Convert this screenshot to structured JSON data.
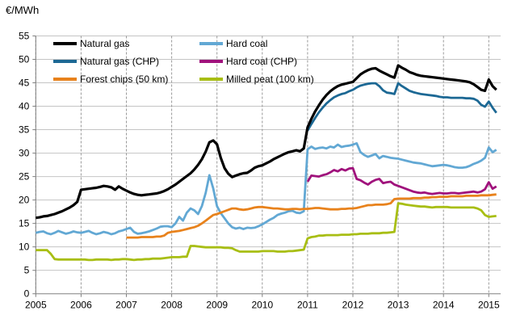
{
  "chart": {
    "y_axis_title": "€/MWh",
    "y_ticks": [
      "0",
      "5",
      "10",
      "15",
      "20",
      "25",
      "30",
      "35",
      "40",
      "45",
      "50",
      "55"
    ],
    "x_ticks": [
      "2005",
      "2006",
      "2007",
      "2008",
      "2009",
      "2010",
      "2011",
      "2012",
      "2013",
      "2014",
      "2015"
    ]
  },
  "chart_data": {
    "type": "line",
    "title": "€/MWh",
    "ylabel": "€/MWh",
    "ylim": [
      0,
      55
    ],
    "y_tick_step": 5,
    "x_range": [
      "2005-01",
      "2015-03"
    ],
    "x_unit": "monthly",
    "grid": "horizontal solid light gray, vertical dashed gray per year",
    "legend_position": "inside top-left, two columns",
    "series": [
      {
        "name": "Hard coal",
        "color": "#62a8d4",
        "start": "2005-01",
        "values": [
          13.0,
          13.2,
          13.3,
          12.9,
          12.7,
          13.0,
          13.4,
          13.1,
          12.8,
          13.0,
          13.3,
          13.1,
          13.0,
          13.2,
          13.4,
          13.0,
          12.7,
          12.9,
          13.2,
          13.0,
          12.7,
          12.9,
          13.3,
          13.5,
          13.8,
          14.1,
          13.2,
          12.8,
          12.9,
          13.1,
          13.3,
          13.6,
          13.9,
          14.3,
          14.4,
          14.4,
          14.2,
          15.0,
          16.4,
          15.6,
          17.3,
          18.2,
          17.8,
          17.0,
          18.7,
          21.5,
          25.3,
          22.5,
          18.7,
          17.2,
          16.1,
          15.0,
          14.2,
          13.9,
          14.1,
          13.8,
          14.1,
          14.0,
          14.1,
          14.4,
          14.8,
          15.3,
          15.8,
          16.2,
          16.8,
          17.1,
          17.3,
          17.6,
          17.7,
          17.3,
          17.2,
          17.6,
          30.8,
          31.4,
          30.9,
          31.1,
          31.2,
          31.0,
          31.4,
          31.2,
          31.8,
          31.3,
          31.5,
          31.6,
          31.8,
          32.1,
          30.2,
          29.6,
          29.2,
          29.5,
          29.8,
          28.9,
          29.4,
          29.2,
          29.0,
          28.9,
          28.8,
          28.6,
          28.4,
          28.2,
          28.0,
          27.9,
          27.8,
          27.6,
          27.4,
          27.2,
          27.3,
          27.4,
          27.5,
          27.4,
          27.2,
          27.0,
          26.9,
          26.9,
          27.0,
          27.3,
          27.7,
          28.0,
          28.4,
          29.0,
          31.2,
          30.2,
          30.7
        ]
      },
      {
        "name": "Milled peat (100 km)",
        "color": "#a8be14",
        "start": "2005-01",
        "values": [
          9.3,
          9.3,
          9.3,
          9.3,
          8.5,
          7.4,
          7.3,
          7.3,
          7.3,
          7.3,
          7.3,
          7.3,
          7.3,
          7.3,
          7.2,
          7.2,
          7.3,
          7.3,
          7.3,
          7.3,
          7.2,
          7.3,
          7.3,
          7.4,
          7.4,
          7.3,
          7.2,
          7.3,
          7.3,
          7.4,
          7.4,
          7.5,
          7.5,
          7.5,
          7.6,
          7.7,
          7.8,
          7.8,
          7.8,
          7.9,
          7.9,
          10.2,
          10.2,
          10.1,
          10.0,
          9.9,
          9.9,
          9.9,
          9.9,
          9.9,
          9.8,
          9.8,
          9.7,
          9.3,
          9.0,
          9.0,
          9.0,
          9.0,
          9.0,
          9.0,
          9.1,
          9.1,
          9.1,
          9.1,
          9.0,
          9.0,
          9.0,
          9.1,
          9.1,
          9.2,
          9.3,
          9.4,
          11.8,
          12.1,
          12.2,
          12.4,
          12.4,
          12.5,
          12.5,
          12.5,
          12.5,
          12.6,
          12.6,
          12.6,
          12.7,
          12.7,
          12.8,
          12.8,
          12.8,
          12.9,
          12.9,
          12.9,
          13.0,
          13.0,
          13.1,
          13.2,
          19.3,
          19.2,
          19.0,
          18.9,
          18.8,
          18.7,
          18.6,
          18.6,
          18.5,
          18.4,
          18.5,
          18.5,
          18.5,
          18.5,
          18.4,
          18.4,
          18.4,
          18.4,
          18.4,
          18.4,
          18.4,
          18.2,
          17.8,
          16.8,
          16.4,
          16.5,
          16.6
        ]
      },
      {
        "name": "Forest chips (50 km)",
        "color": "#e8821c",
        "start": "2007-01",
        "values": [
          12.0,
          12.0,
          12.0,
          12.0,
          12.1,
          12.1,
          12.1,
          12.1,
          12.2,
          12.2,
          12.4,
          13.0,
          13.2,
          13.3,
          13.4,
          13.6,
          13.8,
          14.0,
          14.2,
          14.5,
          15.0,
          15.6,
          16.2,
          16.8,
          17.0,
          17.3,
          17.6,
          17.9,
          18.2,
          18.2,
          18.0,
          17.9,
          18.0,
          18.2,
          18.4,
          18.5,
          18.5,
          18.4,
          18.3,
          18.2,
          18.2,
          18.1,
          18.0,
          18.0,
          18.1,
          18.1,
          18.0,
          18.1,
          18.1,
          18.2,
          18.3,
          18.3,
          18.2,
          18.1,
          18.0,
          18.0,
          18.0,
          18.1,
          18.1,
          18.2,
          18.2,
          18.3,
          18.5,
          18.7,
          18.9,
          18.9,
          19.0,
          19.0,
          19.0,
          19.1,
          19.3,
          20.2,
          20.3,
          20.3,
          20.3,
          20.3,
          20.4,
          20.4,
          20.4,
          20.5,
          20.5,
          20.6,
          20.6,
          20.7,
          20.7,
          20.7,
          20.8,
          20.8,
          20.8,
          20.8,
          20.9,
          20.9,
          20.9,
          20.9,
          21.0,
          21.0,
          21.0,
          21.1,
          21.2
        ]
      },
      {
        "name": "Hard coal (CHP)",
        "color": "#a0127c",
        "start": "2011-01",
        "values": [
          23.9,
          25.2,
          25.1,
          25.0,
          25.3,
          25.5,
          25.9,
          26.4,
          26.1,
          26.6,
          26.3,
          26.7,
          26.8,
          24.5,
          24.2,
          23.7,
          23.3,
          23.9,
          24.3,
          24.5,
          23.6,
          23.8,
          23.9,
          23.3,
          23.0,
          22.7,
          22.4,
          22.1,
          21.8,
          21.6,
          21.5,
          21.6,
          21.4,
          21.3,
          21.4,
          21.5,
          21.4,
          21.4,
          21.5,
          21.5,
          21.4,
          21.5,
          21.6,
          21.7,
          21.8,
          21.6,
          21.8,
          22.3,
          23.8,
          22.4,
          22.9
        ]
      },
      {
        "name": "Natural gas (CHP)",
        "color": "#1c6894",
        "start": "2011-01",
        "values": [
          34.8,
          36.2,
          37.5,
          38.7,
          39.7,
          40.6,
          41.3,
          41.9,
          42.3,
          42.6,
          42.8,
          43.2,
          43.5,
          44.0,
          44.4,
          44.6,
          44.8,
          44.9,
          44.9,
          44.3,
          43.4,
          42.9,
          42.8,
          42.6,
          44.9,
          44.3,
          43.8,
          43.3,
          43.0,
          42.8,
          42.6,
          42.5,
          42.4,
          42.3,
          42.2,
          42.0,
          41.9,
          41.9,
          41.8,
          41.8,
          41.8,
          41.8,
          41.7,
          41.7,
          41.6,
          41.2,
          40.3,
          39.9,
          41.0,
          39.7,
          38.6
        ]
      },
      {
        "name": "Natural gas",
        "color": "#000000",
        "start": "2005-01",
        "values": [
          16.2,
          16.3,
          16.5,
          16.6,
          16.8,
          17.0,
          17.3,
          17.6,
          18.0,
          18.4,
          18.9,
          19.6,
          22.2,
          22.3,
          22.4,
          22.5,
          22.6,
          22.8,
          23.0,
          22.9,
          22.7,
          22.2,
          22.9,
          22.4,
          22.0,
          21.6,
          21.3,
          21.1,
          21.0,
          21.1,
          21.2,
          21.3,
          21.4,
          21.6,
          21.9,
          22.3,
          22.8,
          23.3,
          23.9,
          24.5,
          25.1,
          25.7,
          26.5,
          27.5,
          28.7,
          30.3,
          32.3,
          32.7,
          31.9,
          29.0,
          26.8,
          25.6,
          24.9,
          25.2,
          25.5,
          25.7,
          25.8,
          26.3,
          26.9,
          27.2,
          27.4,
          27.8,
          28.2,
          28.7,
          29.1,
          29.5,
          29.9,
          30.2,
          30.4,
          30.6,
          30.4,
          31.0,
          35.5,
          37.3,
          38.9,
          40.2,
          41.4,
          42.4,
          43.2,
          43.8,
          44.3,
          44.6,
          44.8,
          45.0,
          45.2,
          46.0,
          46.8,
          47.3,
          47.7,
          48.0,
          48.1,
          47.6,
          47.2,
          46.8,
          46.4,
          46.1,
          48.7,
          48.2,
          47.8,
          47.3,
          47.0,
          46.7,
          46.5,
          46.4,
          46.3,
          46.2,
          46.1,
          46.0,
          45.9,
          45.8,
          45.7,
          45.6,
          45.5,
          45.4,
          45.3,
          45.1,
          44.7,
          44.1,
          43.5,
          43.3,
          45.7,
          44.3,
          43.5
        ]
      }
    ]
  }
}
